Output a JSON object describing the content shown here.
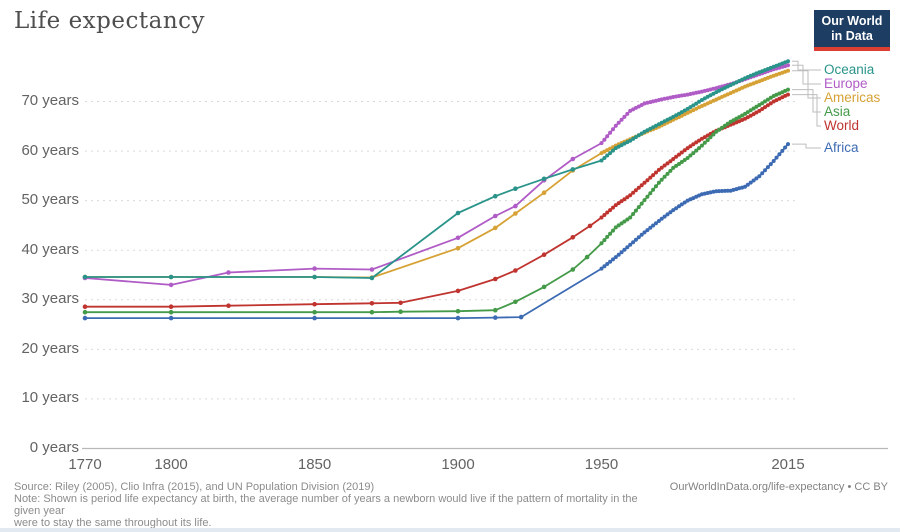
{
  "header": {
    "title": "Life expectancy"
  },
  "logo": {
    "line1": "Our World",
    "line2": "in Data",
    "bg_color": "#1d3d63",
    "bar_color": "#dc3e31"
  },
  "footer": {
    "source": "Source: Riley (2005), Clio Infra (2015), and UN Population Division (2019)",
    "note_line1": "Note: Shown is period life expectancy at birth, the average number of years a newborn would live if the pattern of mortality in the given year",
    "note_line2": "were to stay the same throughout its life.",
    "attribution": "OurWorldInData.org/life-expectancy • CC BY"
  },
  "chart_data": {
    "type": "line",
    "title": "Life expectancy",
    "xlabel": "",
    "ylabel": "",
    "xlim": [
      1770,
      2015
    ],
    "ylim": [
      0,
      78
    ],
    "x_ticks": [
      1770,
      1800,
      1850,
      1900,
      1950,
      2015
    ],
    "y_ticks": [
      0,
      10,
      20,
      30,
      40,
      50,
      60,
      70
    ],
    "y_tick_suffix": " years",
    "grid": "horizontal-dashed",
    "legend_position": "right",
    "series": [
      {
        "name": "Oceania",
        "color": "#2a948a",
        "points": [
          [
            1770,
            34.5
          ],
          [
            1800,
            34.5
          ],
          [
            1850,
            34.5
          ],
          [
            1870,
            34.3
          ],
          [
            1900,
            47.4
          ],
          [
            1913,
            50.8
          ],
          [
            1920,
            52.3
          ],
          [
            1930,
            54.3
          ],
          [
            1940,
            56.2
          ],
          [
            1950,
            58.0
          ],
          [
            1955,
            60.5
          ],
          [
            1960,
            62.0
          ],
          [
            1965,
            63.8
          ],
          [
            1970,
            65.3
          ],
          [
            1975,
            66.8
          ],
          [
            1980,
            68.4
          ],
          [
            1985,
            70.2
          ],
          [
            1990,
            71.8
          ],
          [
            1995,
            73.2
          ],
          [
            2000,
            74.6
          ],
          [
            2005,
            75.8
          ],
          [
            2010,
            76.9
          ],
          [
            2015,
            78.0
          ]
        ]
      },
      {
        "name": "Europe",
        "color": "#b05cc6",
        "points": [
          [
            1770,
            34.3
          ],
          [
            1800,
            32.9
          ],
          [
            1820,
            35.4
          ],
          [
            1850,
            36.2
          ],
          [
            1870,
            36.0
          ],
          [
            1900,
            42.4
          ],
          [
            1913,
            46.8
          ],
          [
            1920,
            48.8
          ],
          [
            1930,
            54.0
          ],
          [
            1940,
            58.3
          ],
          [
            1950,
            61.5
          ],
          [
            1955,
            65.0
          ],
          [
            1960,
            68.0
          ],
          [
            1965,
            69.5
          ],
          [
            1970,
            70.2
          ],
          [
            1975,
            70.8
          ],
          [
            1980,
            71.3
          ],
          [
            1985,
            71.9
          ],
          [
            1990,
            72.6
          ],
          [
            1995,
            73.4
          ],
          [
            2000,
            74.4
          ],
          [
            2005,
            75.4
          ],
          [
            2010,
            76.4
          ],
          [
            2015,
            77.2
          ]
        ]
      },
      {
        "name": "Americas",
        "color": "#d6a235",
        "points": [
          [
            1770,
            34.5
          ],
          [
            1800,
            34.5
          ],
          [
            1850,
            34.5
          ],
          [
            1870,
            34.4
          ],
          [
            1900,
            40.3
          ],
          [
            1913,
            44.4
          ],
          [
            1920,
            47.3
          ],
          [
            1930,
            51.5
          ],
          [
            1940,
            56.0
          ],
          [
            1950,
            59.5
          ],
          [
            1955,
            61.0
          ],
          [
            1960,
            62.3
          ],
          [
            1965,
            63.6
          ],
          [
            1970,
            64.8
          ],
          [
            1975,
            66.2
          ],
          [
            1980,
            67.6
          ],
          [
            1985,
            69.0
          ],
          [
            1990,
            70.3
          ],
          [
            1995,
            71.6
          ],
          [
            2000,
            72.9
          ],
          [
            2005,
            74.0
          ],
          [
            2010,
            75.1
          ],
          [
            2015,
            76.1
          ]
        ]
      },
      {
        "name": "Asia",
        "color": "#449a48",
        "points": [
          [
            1770,
            27.4
          ],
          [
            1800,
            27.4
          ],
          [
            1850,
            27.4
          ],
          [
            1870,
            27.4
          ],
          [
            1880,
            27.5
          ],
          [
            1900,
            27.6
          ],
          [
            1913,
            27.8
          ],
          [
            1920,
            29.5
          ],
          [
            1930,
            32.5
          ],
          [
            1940,
            36.0
          ],
          [
            1945,
            38.5
          ],
          [
            1950,
            41.3
          ],
          [
            1955,
            44.5
          ],
          [
            1960,
            46.5
          ],
          [
            1965,
            50.0
          ],
          [
            1970,
            53.5
          ],
          [
            1975,
            56.5
          ],
          [
            1980,
            58.5
          ],
          [
            1985,
            61.0
          ],
          [
            1990,
            63.8
          ],
          [
            1995,
            65.8
          ],
          [
            2000,
            67.4
          ],
          [
            2005,
            69.2
          ],
          [
            2010,
            71.0
          ],
          [
            2015,
            72.3
          ]
        ]
      },
      {
        "name": "World",
        "color": "#c0342f",
        "points": [
          [
            1770,
            28.5
          ],
          [
            1800,
            28.5
          ],
          [
            1820,
            28.7
          ],
          [
            1850,
            29.0
          ],
          [
            1870,
            29.2
          ],
          [
            1880,
            29.3
          ],
          [
            1900,
            31.7
          ],
          [
            1913,
            34.1
          ],
          [
            1920,
            35.8
          ],
          [
            1930,
            39.0
          ],
          [
            1940,
            42.5
          ],
          [
            1946,
            44.8
          ],
          [
            1950,
            46.5
          ],
          [
            1955,
            49.0
          ],
          [
            1960,
            51.0
          ],
          [
            1965,
            53.5
          ],
          [
            1970,
            56.1
          ],
          [
            1975,
            58.3
          ],
          [
            1980,
            60.5
          ],
          [
            1985,
            62.4
          ],
          [
            1990,
            64.0
          ],
          [
            1995,
            65.2
          ],
          [
            2000,
            66.4
          ],
          [
            2005,
            68.0
          ],
          [
            2010,
            69.9
          ],
          [
            2015,
            71.3
          ]
        ]
      },
      {
        "name": "Africa",
        "color": "#3d6bb3",
        "points": [
          [
            1770,
            26.2
          ],
          [
            1800,
            26.2
          ],
          [
            1850,
            26.2
          ],
          [
            1900,
            26.2
          ],
          [
            1913,
            26.3
          ],
          [
            1922,
            26.4
          ],
          [
            1950,
            36.2
          ],
          [
            1955,
            38.5
          ],
          [
            1960,
            41.0
          ],
          [
            1965,
            43.5
          ],
          [
            1970,
            45.8
          ],
          [
            1975,
            48.0
          ],
          [
            1980,
            49.9
          ],
          [
            1985,
            51.2
          ],
          [
            1990,
            51.8
          ],
          [
            1995,
            51.9
          ],
          [
            2000,
            52.7
          ],
          [
            2005,
            54.8
          ],
          [
            2010,
            57.9
          ],
          [
            2015,
            61.3
          ]
        ]
      }
    ]
  }
}
